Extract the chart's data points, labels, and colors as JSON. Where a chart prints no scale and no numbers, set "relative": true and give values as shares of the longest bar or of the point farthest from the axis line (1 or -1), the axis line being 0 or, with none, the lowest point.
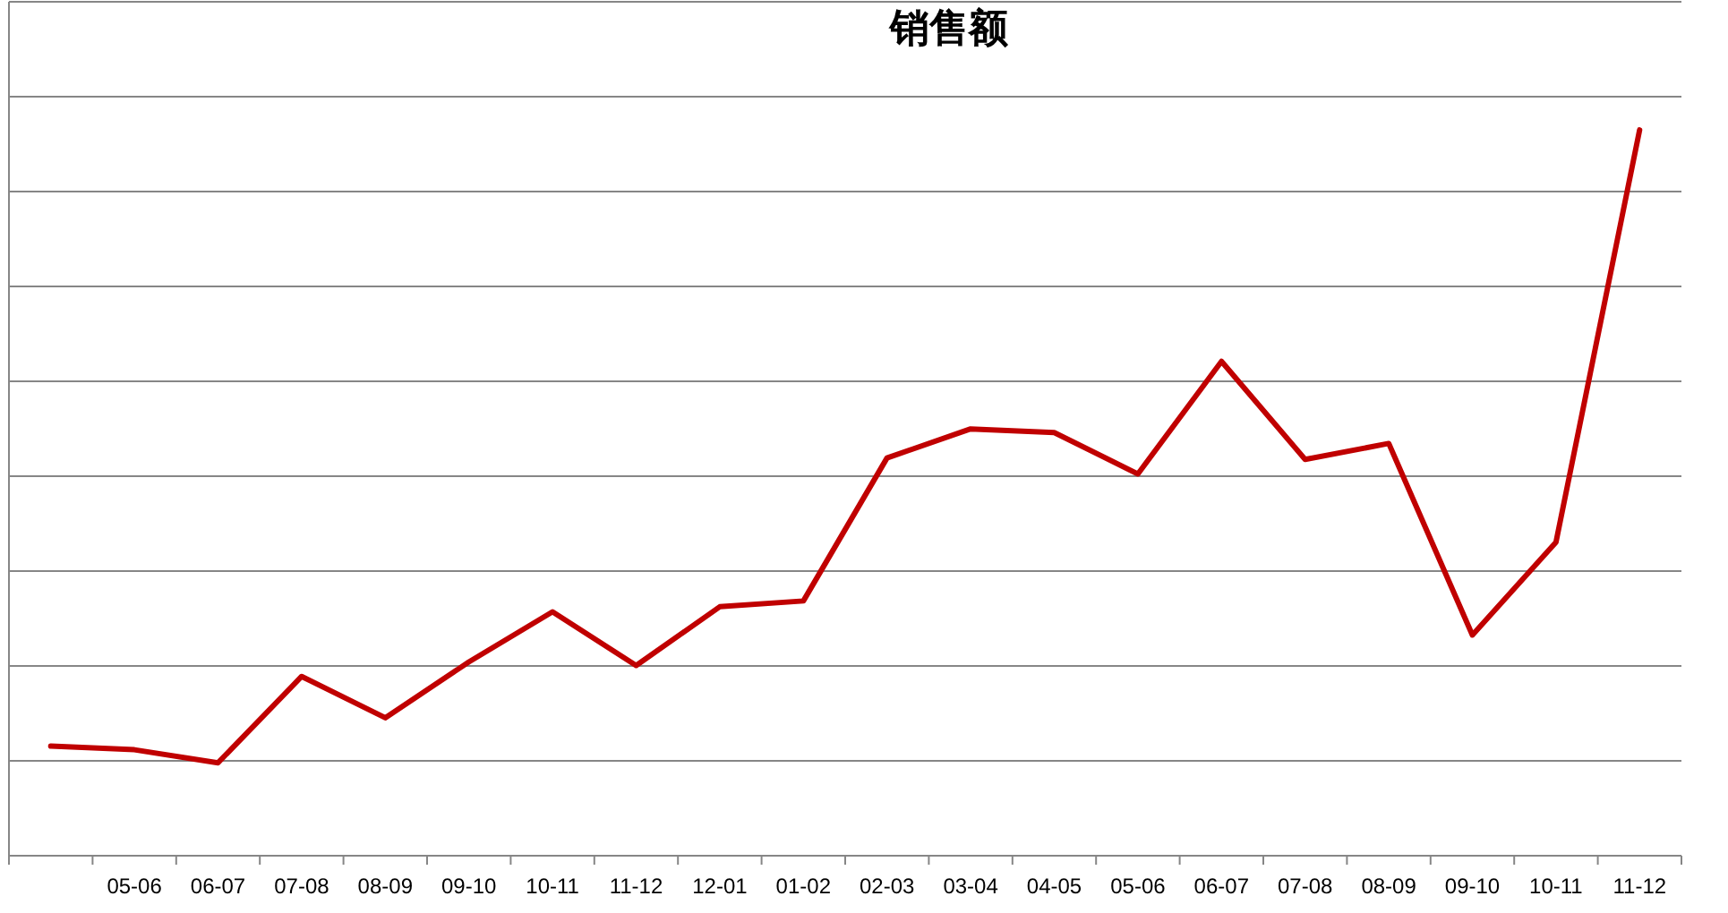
{
  "chart_data": {
    "type": "line",
    "title": "销售额",
    "relative": true,
    "grid": "y",
    "marker": "none",
    "categories": [
      null,
      "05-06",
      "06-07",
      "07-08",
      "08-09",
      "09-10",
      "10-11",
      "11-12",
      "12-01",
      "01-02",
      "02-03",
      "03-04",
      "04-05",
      "05-06",
      "06-07",
      "07-08",
      "08-09",
      "09-10",
      "10-11",
      "11-12"
    ],
    "series": [
      {
        "color": "#c00000",
        "values": [
          0.151,
          0.146,
          0.128,
          0.247,
          0.19,
          0.267,
          0.336,
          0.262,
          0.343,
          0.351,
          0.548,
          0.588,
          0.583,
          0.526,
          0.681,
          0.546,
          0.568,
          0.304,
          0.432,
          1
        ]
      }
    ]
  }
}
